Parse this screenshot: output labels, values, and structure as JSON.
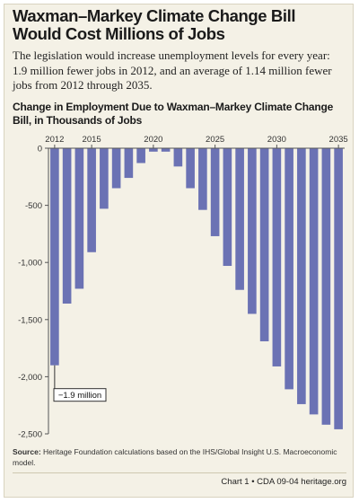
{
  "header": {
    "title": "Waxman–Markey Climate Change Bill Would Cost Millions of Jobs",
    "subtitle": "The legislation would increase unemployment levels for every year: 1.9 million fewer jobs in 2012, and an average of 1.14 million fewer jobs from 2012 through 2035."
  },
  "chart_data": {
    "type": "bar",
    "title": "Change in Employment Due to Waxman–Markey Climate Change Bill, in Thousands of Jobs",
    "xlabel": "",
    "ylabel": "",
    "categories": [
      2012,
      2013,
      2014,
      2015,
      2016,
      2017,
      2018,
      2019,
      2020,
      2021,
      2022,
      2023,
      2024,
      2025,
      2026,
      2027,
      2028,
      2029,
      2030,
      2031,
      2032,
      2033,
      2034,
      2035
    ],
    "values": [
      -1900,
      -1360,
      -1230,
      -910,
      -530,
      -350,
      -260,
      -130,
      -30,
      -30,
      -160,
      -350,
      -540,
      -770,
      -1030,
      -1240,
      -1450,
      -1690,
      -1910,
      -2110,
      -2240,
      -2330,
      -2420,
      -2460
    ],
    "ylim": [
      -2500,
      0
    ],
    "y_ticks": [
      0,
      -500,
      -1000,
      -1500,
      -2000,
      -2500
    ],
    "y_tick_labels": [
      "0",
      "-500",
      "-1,000",
      "-1,500",
      "-2,000",
      "-2,500"
    ],
    "x_tick_labels": [
      "2012",
      "2015",
      "2020",
      "2025",
      "2030",
      "2035"
    ],
    "x_tick_years": [
      2012,
      2015,
      2020,
      2025,
      2030,
      2035
    ],
    "annotation": {
      "text": "−1.9 million",
      "category": 2012
    },
    "grid": false,
    "bar_color": "#6b72b4"
  },
  "source_label": "Source:",
  "source_text": "Heritage Foundation calculations based on the IHS/Global Insight U.S. Macroeconomic model.",
  "footer": "Chart 1 • CDA 09-04  heritage.org"
}
